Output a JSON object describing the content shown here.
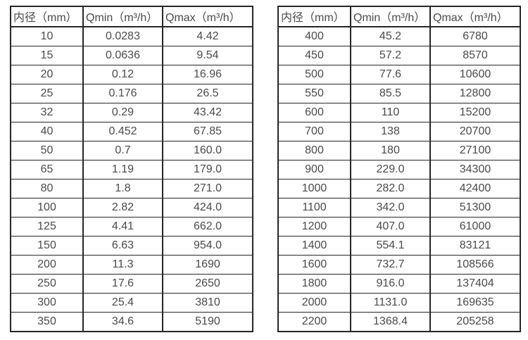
{
  "page": {
    "background": "#ffffff",
    "text_color": "#4a4a4a",
    "border_color": "#262626"
  },
  "tables": [
    {
      "name": "flow-rate-table-small-diameters",
      "headers": [
        "内径（mm）",
        "Qmin（m³/h）",
        "Qmax（m³/h）"
      ],
      "rows": [
        [
          "10",
          "0.0283",
          "4.42"
        ],
        [
          "15",
          "0.0636",
          "9.54"
        ],
        [
          "20",
          "0.12",
          "16.96"
        ],
        [
          "25",
          "0.176",
          "26.5"
        ],
        [
          "32",
          "0.29",
          "43.42"
        ],
        [
          "40",
          "0.452",
          "67.85"
        ],
        [
          "50",
          "0.7",
          "160.0"
        ],
        [
          "65",
          "1.19",
          "179.0"
        ],
        [
          "80",
          "1.8",
          "271.0"
        ],
        [
          "100",
          "2.82",
          "424.0"
        ],
        [
          "125",
          "4.41",
          "662.0"
        ],
        [
          "150",
          "6.63",
          "954.0"
        ],
        [
          "200",
          "11.3",
          "1690"
        ],
        [
          "250",
          "17.6",
          "2650"
        ],
        [
          "300",
          "25.4",
          "3810"
        ],
        [
          "350",
          "34.6",
          "5190"
        ]
      ]
    },
    {
      "name": "flow-rate-table-large-diameters",
      "headers": [
        "内径（mm）",
        "Qmin（m³/h）",
        "Qmax（m³/h）"
      ],
      "rows": [
        [
          "400",
          "45.2",
          "6780"
        ],
        [
          "450",
          "57.2",
          "8570"
        ],
        [
          "500",
          "77.6",
          "10600"
        ],
        [
          "550",
          "85.5",
          "12800"
        ],
        [
          "600",
          "110",
          "15200"
        ],
        [
          "700",
          "138",
          "20700"
        ],
        [
          "800",
          "180",
          "27100"
        ],
        [
          "900",
          "229.0",
          "34300"
        ],
        [
          "1000",
          "282.0",
          "42400"
        ],
        [
          "1100",
          "342.0",
          "51300"
        ],
        [
          "1200",
          "407.0",
          "61000"
        ],
        [
          "1400",
          "554.1",
          "83121"
        ],
        [
          "1600",
          "732.7",
          "108566"
        ],
        [
          "1800",
          "916.0",
          "137404"
        ],
        [
          "2000",
          "1131.0",
          "169635"
        ],
        [
          "2200",
          "1368.4",
          "205258"
        ]
      ]
    }
  ]
}
